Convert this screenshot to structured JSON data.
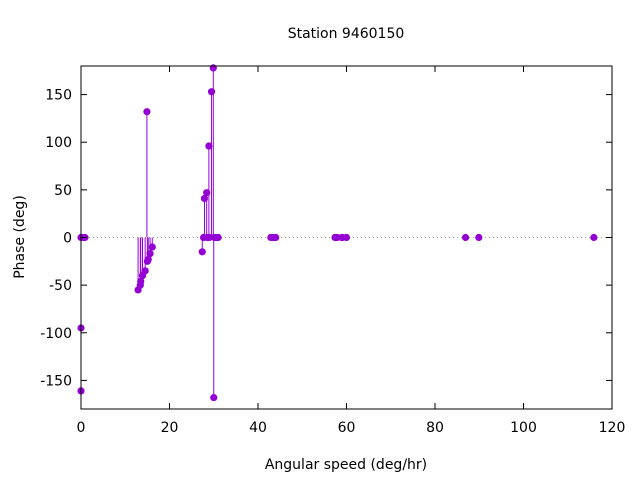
{
  "chart_data": {
    "type": "scatter",
    "style": "impulses-with-points",
    "title": "Station 9460150",
    "xlabel": "Angular speed (deg/hr)",
    "ylabel": "Phase (deg)",
    "xlim": [
      0,
      120
    ],
    "ylim": [
      -180,
      180
    ],
    "xticks": [
      0,
      20,
      40,
      60,
      80,
      100,
      120
    ],
    "yticks": [
      -150,
      -100,
      -50,
      0,
      50,
      100,
      150
    ],
    "grid": false,
    "zero_line": true,
    "colors": {
      "series": "#9400d3",
      "zero_line": "#a0a0a0",
      "axis": "#000000"
    },
    "series": [
      {
        "x": [
          0.0,
          0.0,
          0.0,
          0.5,
          0.9,
          12.9,
          13.4,
          13.5,
          13.9,
          14.5,
          14.9,
          15.0,
          15.2,
          15.6,
          16.1,
          27.4,
          27.7,
          27.9,
          28.4,
          28.5,
          28.9,
          29.0,
          29.5,
          29.9,
          30.0,
          30.1,
          30.6,
          31.0,
          42.9,
          43.5,
          44.0,
          57.4,
          57.9,
          58.9,
          59.1,
          60.0,
          86.9,
          89.9,
          115.9
        ],
        "y": [
          0,
          -95,
          -161,
          0,
          0,
          -55,
          -50,
          -46,
          -40,
          -35,
          132,
          -25,
          -23,
          -17,
          -10,
          -15,
          0,
          41,
          47,
          0,
          96,
          0,
          153,
          178,
          -168,
          0,
          0,
          0,
          0,
          0,
          0,
          0,
          0,
          0,
          0,
          0,
          0,
          0,
          0
        ]
      }
    ]
  }
}
